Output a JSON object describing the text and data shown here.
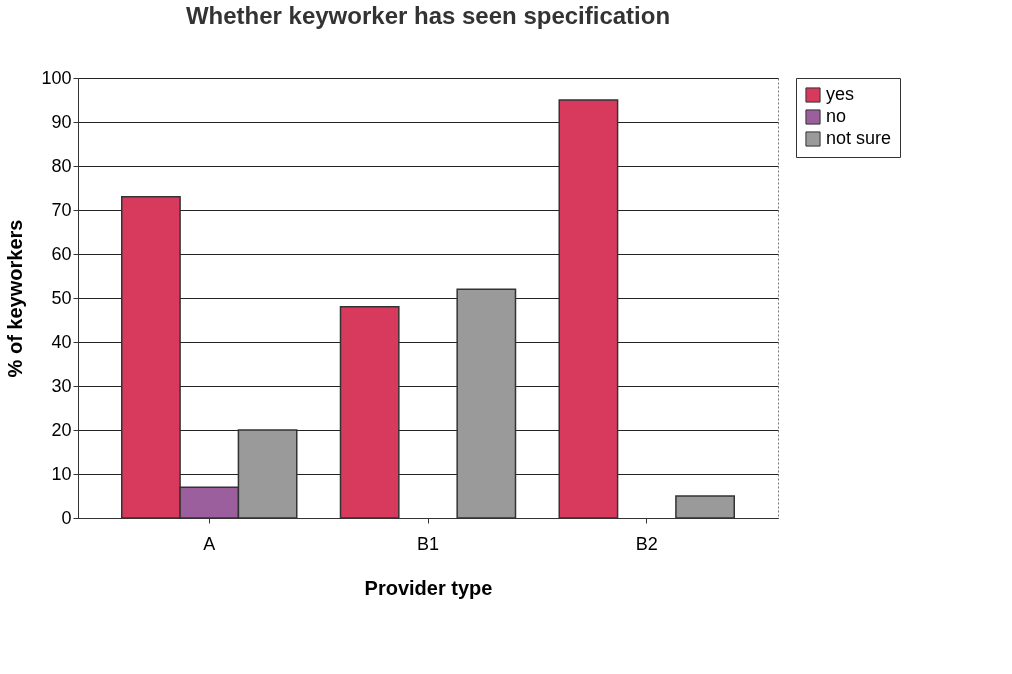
{
  "chart_data": {
    "type": "bar",
    "title": "Whether keyworker has seen specification",
    "xlabel": "Provider type",
    "ylabel": "% of keyworkers",
    "categories": [
      "A",
      "B1",
      "B2"
    ],
    "series": [
      {
        "name": "yes",
        "color": "#d83a5e",
        "values": [
          73,
          48,
          95
        ]
      },
      {
        "name": "no",
        "color": "#9b5f9e",
        "values": [
          7,
          null,
          null
        ]
      },
      {
        "name": "not sure",
        "color": "#9a9a9a",
        "values": [
          20,
          52,
          5
        ]
      }
    ],
    "ylim": [
      0,
      100
    ],
    "yticks": [
      0,
      10,
      20,
      30,
      40,
      50,
      60,
      70,
      80,
      90,
      100
    ],
    "grid": "y",
    "legend": "right"
  }
}
